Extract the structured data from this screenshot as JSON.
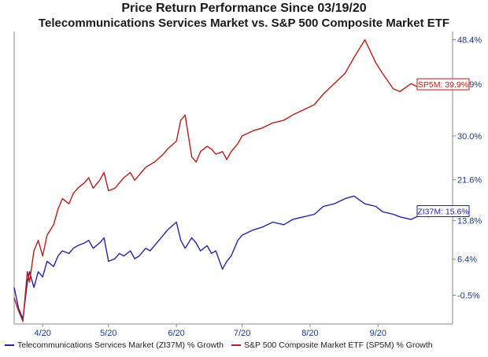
{
  "chart_data": {
    "type": "line",
    "title": "Price Return Performance Since 03/19/20",
    "subtitle": "Telecommunications Services Market   vs.  S&P 500 Composite Market ETF",
    "x_tick_labels": [
      "4/20",
      "5/20",
      "6/20",
      "7/20",
      "8/20",
      "9/20"
    ],
    "y_tick_labels": [
      "48.4%",
      "39.9%",
      "30.0%",
      "21.6%",
      "13.8%",
      "6.4%",
      "-0.5%"
    ],
    "ylim": [
      -6,
      50
    ],
    "x_range": [
      "2020-03-19",
      "2020-10-05"
    ],
    "grid": false,
    "legend_position": "bottom",
    "series": [
      {
        "name": "Telecommunications Services Market (ZI37M) % Growth",
        "short_label": "ZI37M: 15.6%",
        "color": "#2222aa",
        "x": [
          "2020-03-19",
          "2020-03-21",
          "2020-03-23",
          "2020-03-25",
          "2020-03-26",
          "2020-03-28",
          "2020-03-30",
          "2020-04-01",
          "2020-04-03",
          "2020-04-06",
          "2020-04-08",
          "2020-04-10",
          "2020-04-13",
          "2020-04-15",
          "2020-04-17",
          "2020-04-20",
          "2020-04-22",
          "2020-04-24",
          "2020-04-27",
          "2020-04-29",
          "2020-05-01",
          "2020-05-04",
          "2020-05-06",
          "2020-05-08",
          "2020-05-11",
          "2020-05-13",
          "2020-05-15",
          "2020-05-18",
          "2020-05-20",
          "2020-05-22",
          "2020-05-26",
          "2020-05-28",
          "2020-06-01",
          "2020-06-03",
          "2020-06-05",
          "2020-06-08",
          "2020-06-10",
          "2020-06-12",
          "2020-06-15",
          "2020-06-17",
          "2020-06-19",
          "2020-06-22",
          "2020-06-24",
          "2020-06-26",
          "2020-06-29",
          "2020-07-01",
          "2020-07-06",
          "2020-07-10",
          "2020-07-15",
          "2020-07-20",
          "2020-07-24",
          "2020-07-29",
          "2020-08-03",
          "2020-08-07",
          "2020-08-12",
          "2020-08-17",
          "2020-08-21",
          "2020-08-26",
          "2020-08-31",
          "2020-09-03",
          "2020-09-08",
          "2020-09-11",
          "2020-09-16",
          "2020-09-21",
          "2020-09-24",
          "2020-09-29",
          "2020-10-02"
        ],
        "values": [
          1.0,
          -3.0,
          -5.0,
          2.0,
          4.0,
          1.0,
          4.0,
          3.0,
          6.0,
          5.0,
          7.0,
          8.0,
          7.5,
          8.5,
          9.0,
          9.5,
          10.0,
          8.5,
          9.5,
          10.5,
          6.0,
          6.5,
          7.5,
          7.0,
          8.0,
          6.5,
          7.0,
          8.5,
          8.0,
          9.0,
          11.0,
          12.0,
          13.5,
          10.0,
          8.5,
          10.5,
          9.5,
          8.0,
          9.0,
          7.5,
          8.0,
          4.5,
          6.0,
          7.0,
          10.0,
          11.0,
          12.0,
          12.5,
          13.5,
          13.0,
          14.0,
          14.5,
          15.0,
          16.5,
          17.0,
          18.0,
          18.5,
          17.0,
          16.5,
          15.5,
          15.0,
          14.5,
          14.0,
          15.0,
          14.5,
          15.5,
          15.6
        ]
      },
      {
        "name": "S&P 500 Composite Market ETF (SP5M) % Growth",
        "short_label": "SP5M: 39.9%",
        "color": "#bb1a1a",
        "x": [
          "2020-03-19",
          "2020-03-21",
          "2020-03-23",
          "2020-03-25",
          "2020-03-26",
          "2020-03-28",
          "2020-03-30",
          "2020-04-01",
          "2020-04-03",
          "2020-04-06",
          "2020-04-08",
          "2020-04-10",
          "2020-04-13",
          "2020-04-15",
          "2020-04-17",
          "2020-04-20",
          "2020-04-22",
          "2020-04-24",
          "2020-04-27",
          "2020-04-29",
          "2020-05-01",
          "2020-05-04",
          "2020-05-06",
          "2020-05-08",
          "2020-05-11",
          "2020-05-13",
          "2020-05-15",
          "2020-05-18",
          "2020-05-20",
          "2020-05-22",
          "2020-05-26",
          "2020-05-28",
          "2020-06-01",
          "2020-06-03",
          "2020-06-05",
          "2020-06-08",
          "2020-06-10",
          "2020-06-12",
          "2020-06-15",
          "2020-06-17",
          "2020-06-19",
          "2020-06-22",
          "2020-06-24",
          "2020-06-26",
          "2020-06-29",
          "2020-07-01",
          "2020-07-06",
          "2020-07-10",
          "2020-07-15",
          "2020-07-20",
          "2020-07-24",
          "2020-07-29",
          "2020-08-03",
          "2020-08-07",
          "2020-08-12",
          "2020-08-17",
          "2020-08-21",
          "2020-08-26",
          "2020-08-31",
          "2020-09-03",
          "2020-09-08",
          "2020-09-11",
          "2020-09-16",
          "2020-09-21",
          "2020-09-24",
          "2020-09-29",
          "2020-10-02"
        ],
        "values": [
          -1.0,
          -3.5,
          -5.5,
          4.0,
          2.0,
          8.0,
          10.0,
          7.0,
          11.0,
          13.0,
          16.0,
          18.0,
          17.0,
          19.0,
          20.0,
          21.0,
          22.0,
          20.0,
          21.5,
          23.0,
          19.5,
          20.0,
          21.0,
          22.0,
          23.0,
          21.5,
          22.5,
          24.0,
          24.5,
          25.0,
          26.5,
          27.5,
          29.0,
          33.0,
          34.0,
          26.0,
          25.0,
          27.0,
          28.0,
          27.5,
          26.5,
          27.0,
          25.5,
          27.0,
          28.5,
          30.0,
          31.0,
          31.5,
          32.5,
          33.0,
          34.0,
          35.0,
          36.0,
          38.0,
          40.0,
          42.0,
          45.0,
          48.4,
          44.0,
          42.0,
          39.0,
          38.5,
          40.0,
          39.0,
          39.5,
          40.5,
          39.9
        ]
      }
    ]
  },
  "legend": {
    "items": [
      {
        "label": "Telecommunications Services Market (ZI37M) % Growth",
        "color": "#2222aa"
      },
      {
        "label": "S&P 500 Composite Market ETF (SP5M) % Growth",
        "color": "#bb1a1a"
      }
    ]
  }
}
